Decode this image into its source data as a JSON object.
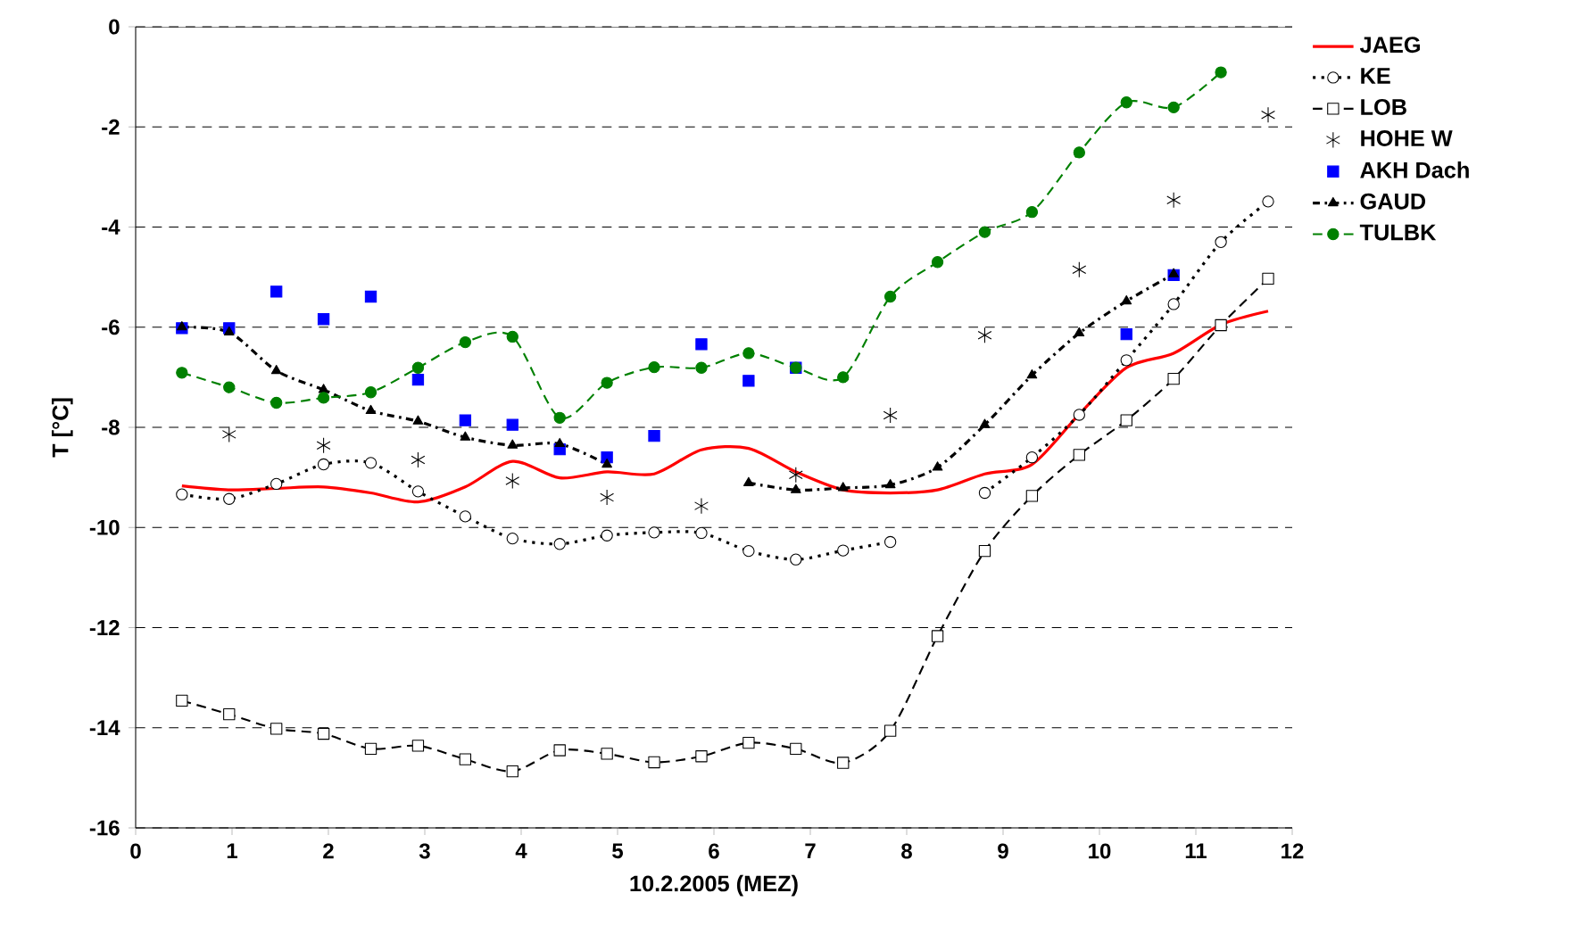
{
  "chart_data": {
    "type": "line",
    "xlabel": "10.2.2005 (MEZ)",
    "ylabel": "T [°C]",
    "x": [
      0.48,
      0.97,
      1.46,
      1.95,
      2.44,
      2.93,
      3.42,
      3.91,
      4.4,
      4.89,
      5.38,
      5.87,
      6.36,
      6.85,
      7.34,
      7.83,
      8.32,
      8.81,
      9.3,
      9.79,
      10.28,
      10.77,
      11.26,
      11.75
    ],
    "series": [
      {
        "name": "JAEG",
        "color": "#ff0000",
        "marker": "none",
        "line_style": "solid",
        "values": [
          -9.17,
          -9.25,
          -9.22,
          -9.19,
          -9.31,
          -9.49,
          -9.19,
          -8.68,
          -9.01,
          -8.89,
          -8.93,
          -8.45,
          -8.42,
          -8.89,
          -9.25,
          -9.31,
          -9.25,
          -8.93,
          -8.74,
          -7.74,
          -6.81,
          -6.52,
          -5.95,
          -5.68
        ]
      },
      {
        "name": "KE",
        "color": "#000000",
        "marker": "circle",
        "line_style": "dotted",
        "values": [
          -9.34,
          -9.43,
          -9.13,
          -8.74,
          -8.71,
          -9.28,
          -9.78,
          -10.22,
          -10.33,
          -10.16,
          -10.1,
          -10.11,
          -10.47,
          -10.64,
          -10.46,
          -10.29,
          null,
          -9.31,
          -8.6,
          -7.75,
          -6.66,
          -5.54,
          -4.3,
          -3.49
        ]
      },
      {
        "name": "LOB",
        "color": "#000000",
        "marker": "square",
        "line_style": "dashed",
        "values": [
          -13.46,
          -13.73,
          -14.02,
          -14.12,
          -14.42,
          -14.36,
          -14.63,
          -14.87,
          -14.45,
          -14.52,
          -14.69,
          -14.57,
          -14.3,
          -14.42,
          -14.7,
          -14.06,
          -12.17,
          -10.47,
          -9.37,
          -8.55,
          -7.86,
          -7.03,
          -5.96,
          -5.03
        ]
      },
      {
        "name": "HOHE W",
        "type": "scatter",
        "color": "#000000",
        "marker": "cross",
        "values": [
          null,
          -8.14,
          null,
          -8.36,
          null,
          -8.65,
          null,
          -9.07,
          null,
          -9.4,
          null,
          -9.57,
          null,
          -8.95,
          null,
          -7.76,
          null,
          -6.16,
          null,
          -4.85,
          null,
          -3.46,
          null,
          -1.76
        ]
      },
      {
        "name": "AKH Dach",
        "type": "scatter",
        "color": "#0000ff",
        "marker": "square",
        "values": [
          -6.02,
          -6.02,
          -5.29,
          -5.84,
          -5.39,
          -7.05,
          -7.86,
          -7.95,
          -8.44,
          -8.6,
          -8.17,
          -6.34,
          -7.07,
          -6.81,
          null,
          null,
          null,
          null,
          null,
          null,
          -6.14,
          -4.96,
          null,
          null
        ]
      },
      {
        "name": "GAUD",
        "color": "#000000",
        "marker": "triangle",
        "line_style": "dashdotted",
        "values": [
          -6.0,
          -6.1,
          -6.87,
          -7.25,
          -7.67,
          -7.88,
          -8.2,
          -8.36,
          -8.33,
          -8.74,
          null,
          null,
          -9.11,
          -9.25,
          -9.21,
          -9.15,
          -8.8,
          -7.95,
          -6.96,
          -6.12,
          -5.48,
          -4.94,
          null,
          null
        ]
      },
      {
        "name": "TULBK",
        "color": "#008000",
        "marker": "circle",
        "line_style": "dashed",
        "values": [
          -6.91,
          -7.2,
          -7.51,
          -7.41,
          -7.3,
          -6.81,
          -6.3,
          -6.19,
          -7.81,
          -7.11,
          -6.8,
          -6.81,
          -6.52,
          -6.81,
          -7.0,
          -5.39,
          -4.7,
          -4.1,
          -3.7,
          -2.51,
          -1.51,
          -1.61,
          -0.91,
          null
        ]
      }
    ],
    "xlim": [
      0,
      12
    ],
    "xticks": [
      0,
      1,
      2,
      3,
      4,
      5,
      6,
      7,
      8,
      9,
      10,
      11,
      12
    ],
    "ylim": [
      -16,
      0
    ],
    "yticks": [
      -16,
      -14,
      -12,
      -10,
      -8,
      -6,
      -4,
      -2,
      0
    ],
    "grid": "y",
    "legend": "right"
  }
}
